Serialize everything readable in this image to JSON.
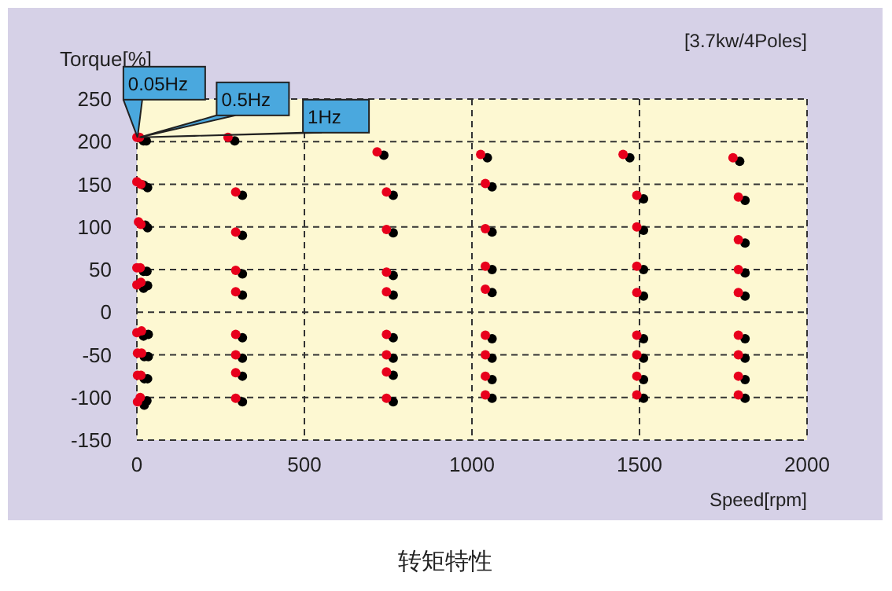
{
  "chart_data": {
    "type": "scatter",
    "ylabel": "Torque[%]",
    "xlabel": "Speed[rpm]",
    "xlim": [
      0,
      2000
    ],
    "xticks": [
      0,
      500,
      1000,
      1500,
      2000
    ],
    "ylim": [
      -150,
      250
    ],
    "yticks": [
      -150,
      -100,
      -50,
      0,
      50,
      100,
      150,
      200,
      250
    ],
    "grid": true,
    "marker": "circle",
    "series": [
      {
        "color": "#e8001c",
        "x": [
          0,
          8,
          0,
          12,
          5,
          12,
          0,
          10,
          0,
          12,
          0,
          14,
          2,
          14,
          2,
          12,
          2,
          10,
          272,
          295,
          295,
          295,
          295,
          295,
          295,
          295,
          295,
          717,
          745,
          745,
          745,
          745,
          745,
          745,
          745,
          745,
          1026,
          1040,
          1040,
          1040,
          1040,
          1040,
          1040,
          1040,
          1040,
          1451,
          1492,
          1492,
          1492,
          1492,
          1492,
          1492,
          1492,
          1492,
          1779,
          1795,
          1795,
          1795,
          1795,
          1795,
          1795,
          1795,
          1795
        ],
        "values": [
          205,
          205,
          153,
          150,
          106,
          103,
          52,
          52,
          32,
          35,
          -24,
          -22,
          -48,
          -48,
          -74,
          -74,
          -105,
          -100,
          205,
          141,
          94,
          49,
          24,
          -26,
          -50,
          -71,
          -101,
          188,
          141,
          97,
          47,
          24,
          -26,
          -50,
          -70,
          -101,
          185,
          151,
          98,
          54,
          27,
          -27,
          -50,
          -75,
          -97,
          185,
          137,
          100,
          54,
          23,
          -27,
          -50,
          -75,
          -97,
          181,
          135,
          85,
          50,
          23,
          -27,
          -50,
          -75,
          -97
        ]
      },
      {
        "color": "#000000",
        "x": [
          20,
          28,
          20,
          32,
          25,
          32,
          20,
          30,
          20,
          32,
          20,
          34,
          22,
          34,
          22,
          32,
          22,
          30,
          292,
          315,
          315,
          315,
          315,
          315,
          315,
          315,
          315,
          737,
          765,
          765,
          765,
          765,
          765,
          765,
          765,
          765,
          1046,
          1060,
          1060,
          1060,
          1060,
          1060,
          1060,
          1060,
          1060,
          1471,
          1512,
          1512,
          1512,
          1512,
          1512,
          1512,
          1512,
          1512,
          1799,
          1815,
          1815,
          1815,
          1815,
          1815,
          1815,
          1815,
          1815
        ],
        "values": [
          201,
          201,
          149,
          146,
          102,
          99,
          48,
          48,
          28,
          31,
          -28,
          -26,
          -52,
          -52,
          -78,
          -78,
          -109,
          -104,
          201,
          137,
          90,
          45,
          20,
          -30,
          -54,
          -75,
          -105,
          184,
          137,
          93,
          43,
          20,
          -30,
          -54,
          -74,
          -105,
          181,
          147,
          94,
          50,
          23,
          -31,
          -54,
          -79,
          -101,
          181,
          133,
          96,
          50,
          19,
          -31,
          -54,
          -79,
          -101,
          177,
          131,
          81,
          46,
          19,
          -31,
          -54,
          -79,
          -101
        ]
      }
    ],
    "annotations": [
      {
        "text": "0.05Hz",
        "x": 2,
        "y": 205
      },
      {
        "text": "0.5Hz",
        "x": 8,
        "y": 205
      },
      {
        "text": "1Hz",
        "x": 12,
        "y": 205
      },
      "[3.7kw/4Poles]",
      "转矩特性"
    ]
  }
}
